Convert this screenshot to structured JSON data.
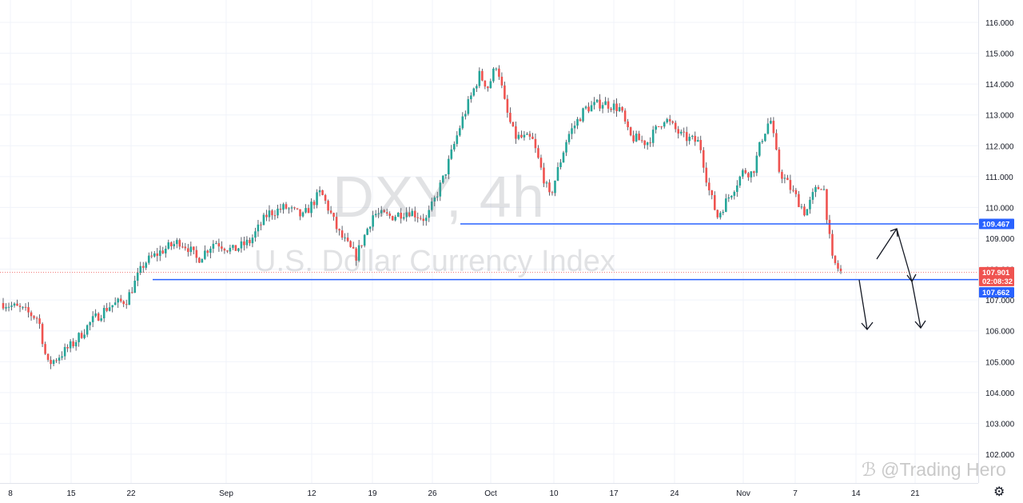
{
  "watermark": {
    "title": "DXY, 4h",
    "subtitle": "U.S. Dollar Currency Index"
  },
  "credit": {
    "icon": "zhihu-logo-icon",
    "text": "@Trading Hero"
  },
  "settings_icon": "gear-icon",
  "colors": {
    "up": "#26a69a",
    "down": "#ef5350",
    "level_line": "#2962ff",
    "label_blue": "#2962ff",
    "label_red": "#ef5350",
    "grid": "#f0f3fa",
    "wick": "#131722"
  },
  "chart_data": {
    "type": "candlestick",
    "title": "DXY, 4h",
    "subtitle": "U.S. Dollar Currency Index",
    "y_ticks": [
      102.0,
      103.0,
      104.0,
      105.0,
      106.0,
      107.0,
      108.0,
      109.0,
      110.0,
      111.0,
      112.0,
      113.0,
      114.0,
      115.0,
      116.0
    ],
    "ylim": [
      101.5,
      116.5
    ],
    "x_ticks": [
      "8",
      "15",
      "22",
      "Sep",
      "12",
      "19",
      "26",
      "Oct",
      "10",
      "17",
      "24",
      "Nov",
      "7",
      "14",
      "21"
    ],
    "close_path": [
      [
        0,
        106.9
      ],
      [
        2,
        106.7
      ],
      [
        4,
        106.4
      ],
      [
        5,
        104.9
      ],
      [
        6,
        105.1
      ],
      [
        8,
        105.6
      ],
      [
        10,
        106.3
      ],
      [
        12,
        106.8
      ],
      [
        14,
        107.0
      ],
      [
        16,
        108.2
      ],
      [
        18,
        108.6
      ],
      [
        20,
        108.9
      ],
      [
        21,
        108.7
      ],
      [
        22,
        108.3
      ],
      [
        23,
        108.6
      ],
      [
        24,
        108.9
      ],
      [
        26,
        108.6
      ],
      [
        28,
        108.9
      ],
      [
        30,
        109.8
      ],
      [
        32,
        110.0
      ],
      [
        34,
        109.7
      ],
      [
        36,
        110.5
      ],
      [
        37,
        109.9
      ],
      [
        38,
        109.2
      ],
      [
        40,
        108.4
      ],
      [
        42,
        109.8
      ],
      [
        44,
        109.7
      ],
      [
        46,
        109.9
      ],
      [
        48,
        109.6
      ],
      [
        50,
        111.0
      ],
      [
        52,
        112.8
      ],
      [
        54,
        114.3
      ],
      [
        55,
        113.9
      ],
      [
        56,
        114.7
      ],
      [
        57,
        113.2
      ],
      [
        58,
        112.3
      ],
      [
        60,
        112.2
      ],
      [
        62,
        110.3
      ],
      [
        63,
        111.3
      ],
      [
        64,
        112.3
      ],
      [
        66,
        113.2
      ],
      [
        68,
        113.4
      ],
      [
        70,
        113.2
      ],
      [
        71,
        112.3
      ],
      [
        73,
        112.1
      ],
      [
        75,
        112.9
      ],
      [
        77,
        112.3
      ],
      [
        79,
        112.1
      ],
      [
        80,
        110.6
      ],
      [
        81,
        109.7
      ],
      [
        82,
        110.2
      ],
      [
        84,
        111.2
      ],
      [
        85,
        111.1
      ],
      [
        86,
        112.2
      ],
      [
        87,
        112.9
      ],
      [
        88,
        111.2
      ],
      [
        90,
        110.3
      ],
      [
        91,
        109.8
      ],
      [
        92,
        110.5
      ],
      [
        93,
        110.8
      ],
      [
        94,
        108.3
      ],
      [
        95,
        107.9
      ]
    ],
    "last_price": 107.901,
    "countdown": "02:08:32",
    "levels": [
      109.467,
      107.662
    ],
    "level_labels": [
      "109.467",
      "107.662"
    ],
    "last_price_label": "107.901"
  }
}
